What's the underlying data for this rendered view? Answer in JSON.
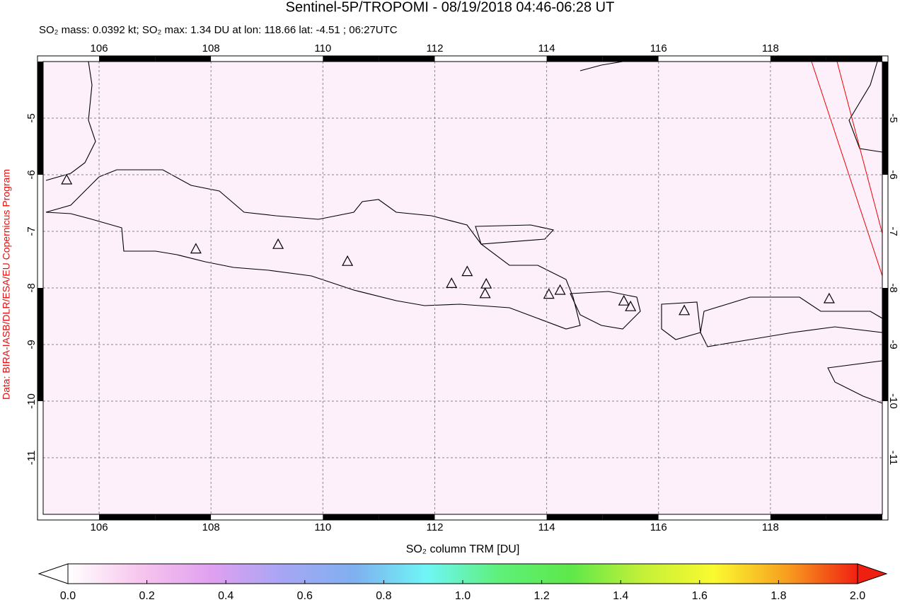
{
  "chart_data": [
    {
      "type": "map",
      "title": "Sentinel-5P/TROPOMI - 08/19/2018 04:46-06:28 UT",
      "subtitle": "SO₂ mass: 0.0392 kt; SO₂ max: 1.34 DU at lon: 118.66 lat: -4.51 ; 06:27UTC",
      "source": "Data: BIRA-IASB/DLR/ESA/EU Copernicus Program",
      "xlim": [
        105,
        120
      ],
      "xticks": [
        106,
        108,
        110,
        112,
        114,
        116,
        118
      ],
      "ylim": [
        -12,
        -4
      ],
      "yticks": [
        -5,
        -6,
        -7,
        -8,
        -9,
        -10,
        -11
      ],
      "grid": true,
      "x": [
        105.42,
        107.73,
        109.2,
        110.44,
        112.3,
        112.58,
        112.92,
        112.9,
        114.04,
        114.24,
        115.38,
        115.5,
        116.46,
        119.05
      ],
      "values": [
        -6.1,
        -7.32,
        -7.24,
        -7.54,
        -7.93,
        -7.72,
        -7.94,
        -8.11,
        -8.12,
        -8.05,
        -8.24,
        -8.34,
        -8.41,
        -8.2
      ]
    },
    {
      "type": "colorbar",
      "title": "SO₂ column TRM [DU]",
      "xlim": [
        0,
        2
      ],
      "xticks": [
        {
          "value": 0,
          "label": "0.0"
        },
        {
          "value": 0.2,
          "label": "0.2"
        },
        {
          "value": 0.4,
          "label": "0.4"
        },
        {
          "value": 0.6,
          "label": "0.6"
        },
        {
          "value": 0.8,
          "label": "0.8"
        },
        {
          "value": 1,
          "label": "1.0"
        },
        {
          "value": 1.2,
          "label": "1.2"
        },
        {
          "value": 1.4,
          "label": "1.4"
        },
        {
          "value": 1.6,
          "label": "1.6"
        },
        {
          "value": 1.8,
          "label": "1.8"
        },
        {
          "value": 2,
          "label": "2.0"
        }
      ],
      "colors": [
        "#ffffff",
        "#f7c6ee",
        "#e0a0f0",
        "#a6a6f4",
        "#7fb0f0",
        "#6ff6f6",
        "#5ef07a",
        "#5ee84a",
        "#c4f038",
        "#fafa30",
        "#f8a020",
        "#f02010"
      ]
    }
  ]
}
